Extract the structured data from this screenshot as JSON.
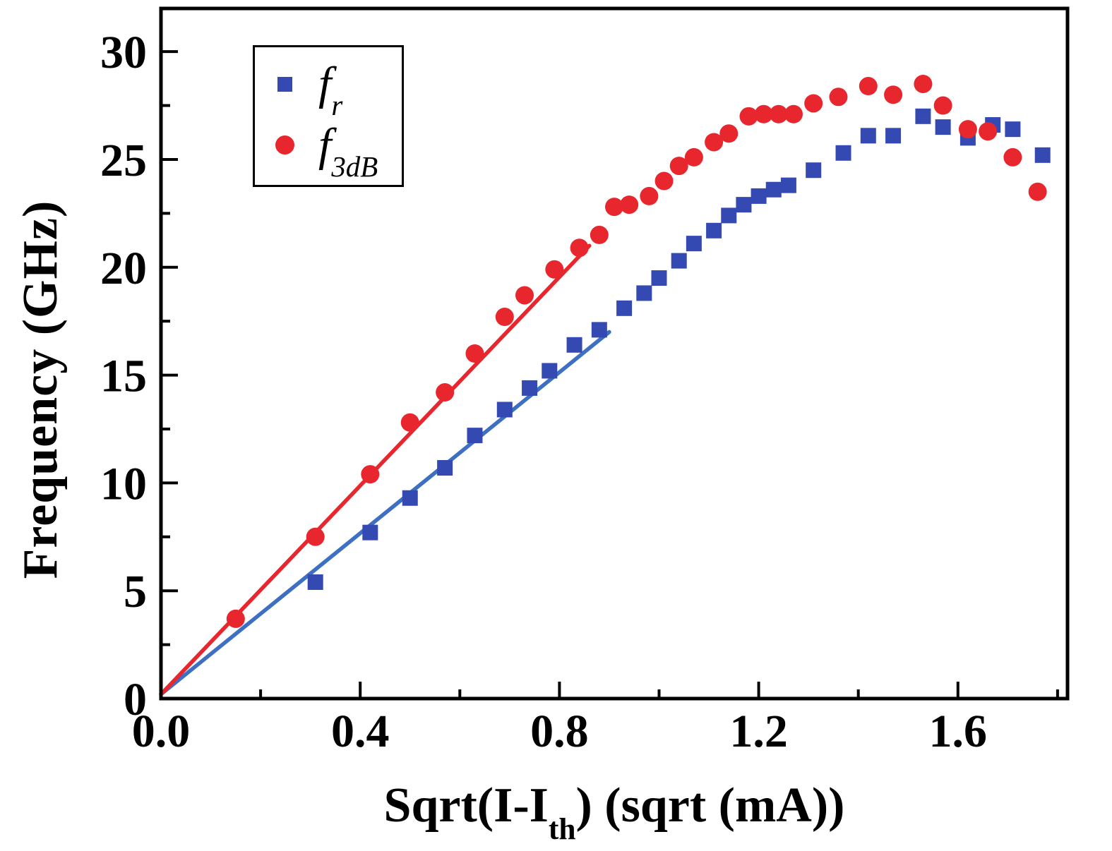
{
  "axes": {
    "ylabel": "Frequency (GHz)",
    "xlabel_main": "Sqrt(I-I",
    "xlabel_sub": "th",
    "xlabel_rest": ") (sqrt (mA))"
  },
  "legend": {
    "items": [
      {
        "label_main": "f",
        "label_sub": "r",
        "marker": "square",
        "color": "#3549b3"
      },
      {
        "label_main": "f",
        "label_sub": "3dB",
        "marker": "circle",
        "color": "#e8262d"
      }
    ]
  },
  "chart_data": {
    "type": "scatter",
    "title": "",
    "xlabel": "Sqrt(I-Ith) (sqrt (mA))",
    "ylabel": "Frequency (GHz)",
    "xlim": [
      0,
      1.82
    ],
    "ylim": [
      0,
      32
    ],
    "grid": false,
    "legend_position": "upper-left-inside",
    "xticks": [
      0.0,
      0.4,
      0.8,
      1.2,
      1.6
    ],
    "xtick_labels": [
      "0.0",
      "0.4",
      "0.8",
      "1.2",
      "1.6"
    ],
    "xticks_minor": [
      0.2,
      0.6,
      1.0,
      1.4,
      1.8
    ],
    "yticks": [
      0,
      5,
      10,
      15,
      20,
      25,
      30
    ],
    "ytick_labels": [
      "0",
      "5",
      "10",
      "15",
      "20",
      "25",
      "30"
    ],
    "yticks_minor": [
      2.5,
      7.5,
      12.5,
      17.5,
      22.5,
      27.5
    ],
    "series": [
      {
        "name": "f_r",
        "marker": "square",
        "color": "#3549b3",
        "marker_size": 22,
        "points": [
          [
            0.31,
            5.4
          ],
          [
            0.42,
            7.7
          ],
          [
            0.5,
            9.3
          ],
          [
            0.57,
            10.7
          ],
          [
            0.63,
            12.2
          ],
          [
            0.69,
            13.4
          ],
          [
            0.74,
            14.4
          ],
          [
            0.78,
            15.2
          ],
          [
            0.83,
            16.4
          ],
          [
            0.88,
            17.1
          ],
          [
            0.93,
            18.1
          ],
          [
            0.97,
            18.8
          ],
          [
            1.0,
            19.5
          ],
          [
            1.04,
            20.3
          ],
          [
            1.07,
            21.1
          ],
          [
            1.11,
            21.7
          ],
          [
            1.14,
            22.4
          ],
          [
            1.17,
            22.9
          ],
          [
            1.2,
            23.3
          ],
          [
            1.23,
            23.6
          ],
          [
            1.26,
            23.8
          ],
          [
            1.31,
            24.5
          ],
          [
            1.37,
            25.3
          ],
          [
            1.42,
            26.1
          ],
          [
            1.47,
            26.1
          ],
          [
            1.53,
            27.0
          ],
          [
            1.57,
            26.5
          ],
          [
            1.62,
            26.0
          ],
          [
            1.67,
            26.6
          ],
          [
            1.71,
            26.4
          ],
          [
            1.77,
            25.2
          ]
        ]
      },
      {
        "name": "f_3dB",
        "marker": "circle",
        "color": "#e8262d",
        "marker_size": 26,
        "points": [
          [
            0.15,
            3.7
          ],
          [
            0.31,
            7.5
          ],
          [
            0.42,
            10.4
          ],
          [
            0.5,
            12.8
          ],
          [
            0.57,
            14.2
          ],
          [
            0.63,
            16.0
          ],
          [
            0.69,
            17.7
          ],
          [
            0.73,
            18.7
          ],
          [
            0.79,
            19.9
          ],
          [
            0.84,
            20.9
          ],
          [
            0.88,
            21.5
          ],
          [
            0.91,
            22.8
          ],
          [
            0.94,
            22.9
          ],
          [
            0.98,
            23.3
          ],
          [
            1.01,
            24.0
          ],
          [
            1.04,
            24.7
          ],
          [
            1.07,
            25.1
          ],
          [
            1.11,
            25.8
          ],
          [
            1.14,
            26.2
          ],
          [
            1.18,
            27.0
          ],
          [
            1.21,
            27.1
          ],
          [
            1.24,
            27.1
          ],
          [
            1.27,
            27.1
          ],
          [
            1.31,
            27.6
          ],
          [
            1.36,
            27.9
          ],
          [
            1.42,
            28.4
          ],
          [
            1.47,
            28.0
          ],
          [
            1.53,
            28.5
          ],
          [
            1.57,
            27.5
          ],
          [
            1.62,
            26.4
          ],
          [
            1.66,
            26.3
          ],
          [
            1.71,
            25.1
          ],
          [
            1.76,
            23.5
          ]
        ]
      }
    ],
    "fit_lines": [
      {
        "name": "fr-linear-fit",
        "color": "#3d6fc2",
        "x": [
          0.0,
          0.9
        ],
        "y": [
          0.2,
          17.0
        ]
      },
      {
        "name": "f3dB-linear-fit",
        "color": "#e8262d",
        "x": [
          0.0,
          0.86
        ],
        "y": [
          0.2,
          21.0
        ]
      }
    ]
  }
}
